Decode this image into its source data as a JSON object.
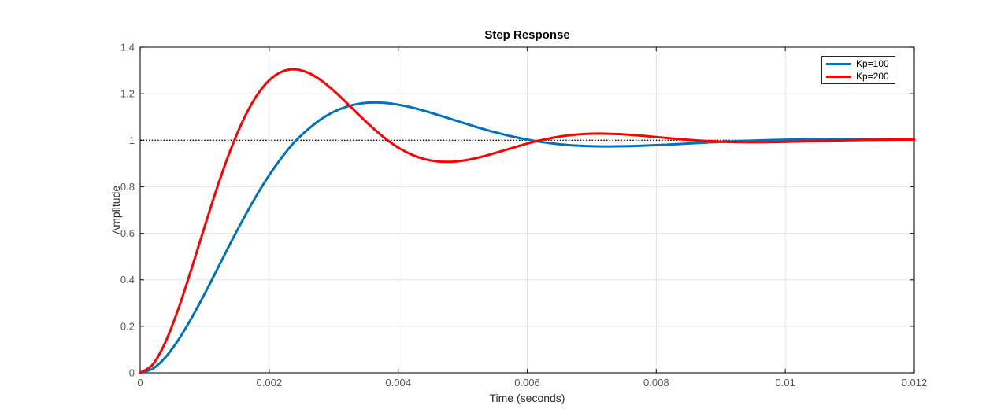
{
  "chart_data": {
    "type": "line",
    "title": "Step Response",
    "xlabel": "Time (seconds)",
    "ylabel": "Amplitude",
    "xlim": [
      0,
      0.012
    ],
    "ylim": [
      0,
      1.4
    ],
    "xticks": [
      0,
      0.002,
      0.004,
      0.006,
      0.008,
      0.01,
      0.012
    ],
    "xtick_labels": [
      "0",
      "0.002",
      "0.004",
      "0.006",
      "0.008",
      "0.01",
      "0.012"
    ],
    "yticks": [
      0,
      0.2,
      0.4,
      0.6,
      0.8,
      1,
      1.2,
      1.4
    ],
    "ytick_labels": [
      "0",
      "0.2",
      "0.4",
      "0.6",
      "0.8",
      "1",
      "1.2",
      "1.4"
    ],
    "grid": true,
    "grid_color": "#e3e3e3",
    "axis_color": "#262626",
    "tick_label_color": "#575757",
    "legend_position": "top-right",
    "reference_line": {
      "y": 1,
      "style": "dotted",
      "color": "#000000"
    },
    "x": [
      0,
      0.0002,
      0.0004,
      0.0006,
      0.0008,
      0.001,
      0.0012,
      0.0014,
      0.0016,
      0.0018,
      0.002,
      0.0022,
      0.0024,
      0.0026,
      0.0028,
      0.003,
      0.0032,
      0.0034,
      0.0036,
      0.0038,
      0.004,
      0.0042,
      0.0044,
      0.0046,
      0.0048,
      0.005,
      0.0052,
      0.0054,
      0.0056,
      0.0058,
      0.006,
      0.0062,
      0.0064,
      0.0066,
      0.0068,
      0.007,
      0.0072,
      0.0074,
      0.0076,
      0.0078,
      0.008,
      0.0082,
      0.0084,
      0.0086,
      0.0088,
      0.009,
      0.0092,
      0.0094,
      0.0096,
      0.0098,
      0.01,
      0.0102,
      0.0104,
      0.0106,
      0.0108,
      0.011,
      0.0112,
      0.0114,
      0.0116,
      0.0118,
      0.012
    ],
    "series": [
      {
        "name": "Kp=100",
        "color": "#0072BD",
        "peak": 1.16,
        "peak_time": 0.0036,
        "values": [
          0,
          0.0186,
          0.0694,
          0.1446,
          0.237,
          0.34,
          0.4482,
          0.5573,
          0.6622,
          0.7604,
          0.8494,
          0.9277,
          0.9945,
          1.0462,
          1.0897,
          1.1221,
          1.1442,
          1.1571,
          1.162,
          1.1602,
          1.1528,
          1.1413,
          1.1268,
          1.1103,
          1.0928,
          1.0752,
          1.058,
          1.0418,
          1.0271,
          1.0141,
          1.0029,
          0.9931,
          0.9858,
          0.9803,
          0.9766,
          0.9744,
          0.9735,
          0.9737,
          0.9748,
          0.9767,
          0.979,
          0.9817,
          0.9845,
          0.9874,
          0.9903,
          0.9929,
          0.9954,
          0.9975,
          0.9994,
          1.0009,
          1.0022,
          1.0031,
          1.0038,
          1.0041,
          1.0043,
          1.0043,
          1.0041,
          1.0039,
          1.0035,
          1.003,
          1.0026
        ]
      },
      {
        "name": "Kp=200",
        "color": "#FF0000",
        "peak": 1.305,
        "peak_time": 0.0024,
        "values": [
          0,
          0.0372,
          0.137,
          0.281,
          0.4505,
          0.629,
          0.8018,
          0.9575,
          1.0881,
          1.1887,
          1.2575,
          1.2952,
          1.3048,
          1.2907,
          1.2583,
          1.2131,
          1.1608,
          1.1064,
          1.0541,
          1.0075,
          0.9687,
          0.9393,
          0.9195,
          0.9091,
          0.9072,
          0.9123,
          0.9228,
          0.9369,
          0.9531,
          0.9696,
          0.9854,
          0.9994,
          1.0108,
          1.0194,
          1.0251,
          1.0279,
          1.0282,
          1.0264,
          1.0231,
          1.0186,
          1.0137,
          1.0086,
          1.0039,
          0.9997,
          0.9963,
          0.9938,
          0.9922,
          0.9914,
          0.9914,
          0.992,
          0.9931,
          0.9945,
          0.996,
          0.9976,
          0.999,
          1.0002,
          1.0012,
          1.002,
          1.0024,
          1.0026,
          1.0026
        ]
      }
    ]
  }
}
